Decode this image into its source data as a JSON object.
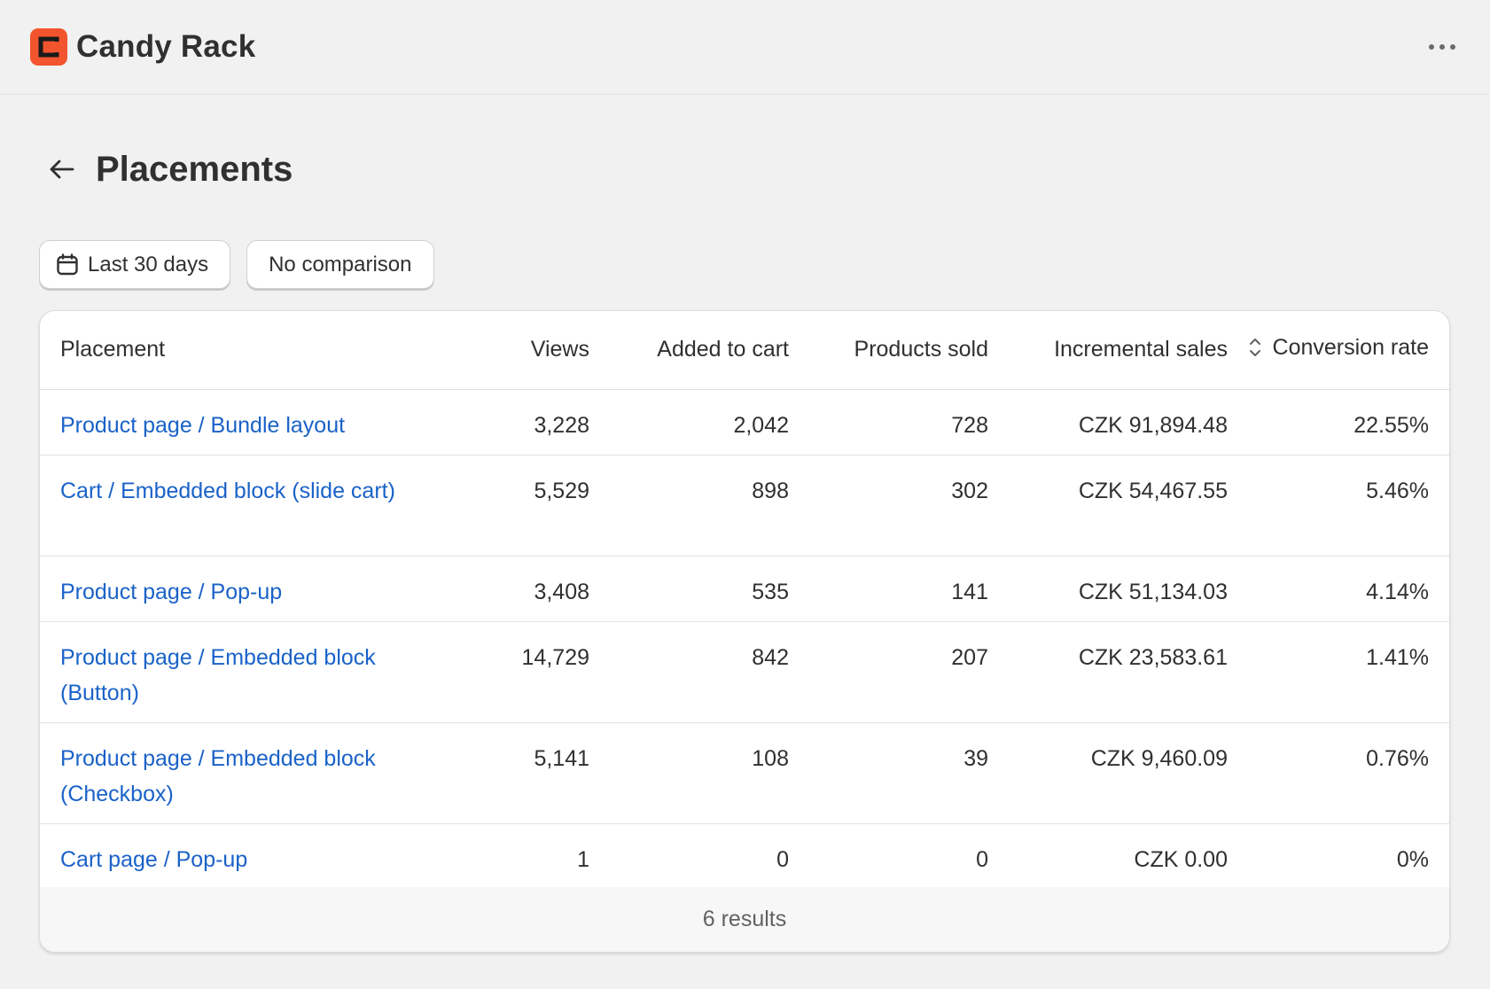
{
  "app": {
    "title": "Candy Rack"
  },
  "page": {
    "title": "Placements"
  },
  "filters": {
    "date_range": "Last 30 days",
    "comparison": "No comparison"
  },
  "table": {
    "columns": [
      "Placement",
      "Views",
      "Added to cart",
      "Products sold",
      "Incremental sales",
      "Conversion rate"
    ],
    "rows": [
      {
        "placement": "Product page / Bundle layout",
        "views": "3,228",
        "added": "2,042",
        "sold": "728",
        "sales": "CZK 91,894.48",
        "conversion": "22.55%"
      },
      {
        "placement": "Cart / Embedded block (slide cart)",
        "views": "5,529",
        "added": "898",
        "sold": "302",
        "sales": "CZK 54,467.55",
        "conversion": "5.46%"
      },
      {
        "placement": "Product page / Pop-up",
        "views": "3,408",
        "added": "535",
        "sold": "141",
        "sales": "CZK 51,134.03",
        "conversion": "4.14%"
      },
      {
        "placement": "Product page / Embedded block (Button)",
        "views": "14,729",
        "added": "842",
        "sold": "207",
        "sales": "CZK 23,583.61",
        "conversion": "1.41%"
      },
      {
        "placement": "Product page / Embedded block (Checkbox)",
        "views": "5,141",
        "added": "108",
        "sold": "39",
        "sales": "CZK 9,460.09",
        "conversion": "0.76%"
      },
      {
        "placement": "Cart page / Pop-up",
        "views": "1",
        "added": "0",
        "sold": "0",
        "sales": "CZK 0.00",
        "conversion": "0%"
      }
    ],
    "footer": "6 results"
  },
  "colors": {
    "brand": "#f2542d",
    "link": "#1a62c8",
    "background": "#f1f1f1"
  },
  "icons": {
    "logo": "candy-rack-logo",
    "more": "more-horizontal-icon",
    "back": "arrow-left-icon",
    "calendar": "calendar-icon",
    "sort": "sort-icon"
  }
}
